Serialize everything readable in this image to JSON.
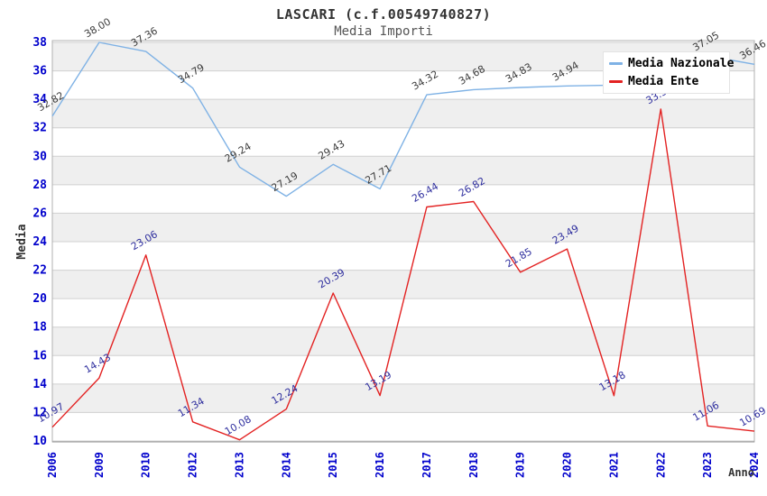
{
  "header": {
    "title": "LASCARI (c.f.00549740827)",
    "subtitle": "Media Importi"
  },
  "axes": {
    "y_title": "Media",
    "x_title": "Anno"
  },
  "colors": {
    "nazionale_line": "#7fb2e5",
    "ente_line": "#e32222",
    "tick_text": "#0000cc",
    "axis_title_text": "#333333",
    "grid_line": "#d0d0d0",
    "band_fill": "#efefef",
    "plot_border": "#b0b0b0",
    "axis_line": "#909090",
    "nazionale_label_text": "#3c3c3c",
    "ente_label_text": "#2e2e9e"
  },
  "legend": {
    "items": [
      {
        "label": "Media Nazionale",
        "color": "#7fb2e5"
      },
      {
        "label": "Media Ente",
        "color": "#e32222"
      }
    ]
  },
  "chart_data": {
    "type": "line",
    "title": "Media Importi",
    "xlabel": "Anno",
    "ylabel": "Media",
    "ylim": [
      10,
      38
    ],
    "y_ticks": [
      10,
      12,
      14,
      16,
      18,
      20,
      22,
      24,
      26,
      28,
      30,
      32,
      34,
      36,
      38
    ],
    "grid": true,
    "legend_position": "top-right",
    "categories": [
      "2006",
      "2009",
      "2010",
      "2012",
      "2013",
      "2014",
      "2015",
      "2016",
      "2017",
      "2018",
      "2019",
      "2020",
      "2021",
      "2022",
      "2023",
      "2024"
    ],
    "series": [
      {
        "name": "Media Nazionale",
        "color": "#7fb2e5",
        "label_color": "#3c3c3c",
        "values": [
          32.82,
          38.0,
          37.36,
          34.79,
          29.24,
          27.19,
          29.43,
          27.71,
          34.32,
          34.68,
          34.83,
          34.94,
          35.0,
          36.1,
          37.05,
          36.46
        ],
        "labels": [
          "32.82",
          "38.00",
          "37.36",
          "34.79",
          "29.24",
          "27.19",
          "29.43",
          "27.71",
          "34.32",
          "34.68",
          "34.83",
          "34.94",
          null,
          null,
          "37.05",
          "36.46"
        ]
      },
      {
        "name": "Media Ente",
        "color": "#e32222",
        "label_color": "#2e2e9e",
        "values": [
          10.97,
          14.43,
          23.06,
          11.34,
          10.08,
          12.24,
          20.39,
          13.19,
          26.44,
          26.82,
          21.85,
          23.49,
          13.18,
          33.32,
          11.06,
          10.69
        ],
        "labels": [
          "10.97",
          "14.43",
          "23.06",
          "11.34",
          "10.08",
          "12.24",
          "20.39",
          "13.19",
          "26.44",
          "26.82",
          "21.85",
          "23.49",
          "13.18",
          "33.32",
          "11.06",
          "10.69"
        ]
      }
    ],
    "notes": "Media Nazionale labels for 2021 and 2022 are hidden behind the legend box; their values are estimated from the drawn line."
  }
}
